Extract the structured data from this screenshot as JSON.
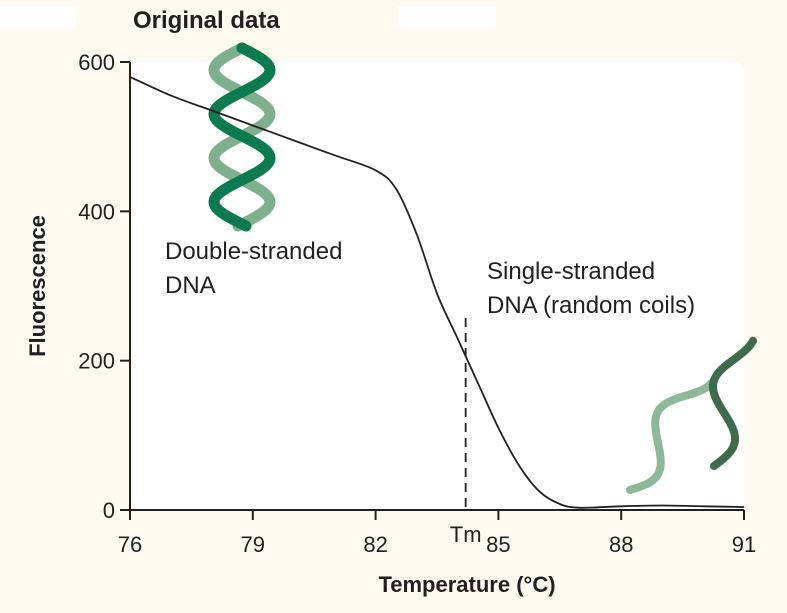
{
  "chart_data": {
    "type": "line",
    "title": "Original data",
    "xlabel": "Temperature (°C)",
    "ylabel": "Fluorescence",
    "xlim": [
      76,
      91
    ],
    "ylim": [
      0,
      600
    ],
    "x_ticks": [
      76,
      79,
      82,
      85,
      88,
      91
    ],
    "y_ticks": [
      0,
      200,
      400,
      600
    ],
    "grid": false,
    "series": [
      {
        "x": [
          76,
          77,
          78,
          79,
          80,
          81,
          82,
          82.5,
          83,
          83.5,
          84,
          84.5,
          85,
          85.5,
          86,
          86.5,
          87,
          88,
          89,
          90,
          91
        ],
        "y": [
          580,
          555,
          535,
          515,
          495,
          475,
          455,
          430,
          370,
          290,
          230,
          170,
          110,
          60,
          25,
          8,
          3,
          5,
          6,
          5,
          4
        ]
      }
    ],
    "tm_marker": {
      "label": "Tm",
      "x": 84.2
    },
    "annotations": [
      {
        "id": "double",
        "lines": [
          "Double-stranded",
          "DNA"
        ]
      },
      {
        "id": "single",
        "lines": [
          "Single-stranded",
          "DNA (random coils)"
        ]
      }
    ]
  },
  "colors": {
    "background": "#fdfaf1",
    "plot_background": "#ffffff",
    "axis": "#231f20",
    "dna_dark": "#0b7a4e",
    "dna_light": "#7fb08d",
    "ss_dark": "#3d6b4c",
    "ss_light": "#8db89a"
  }
}
